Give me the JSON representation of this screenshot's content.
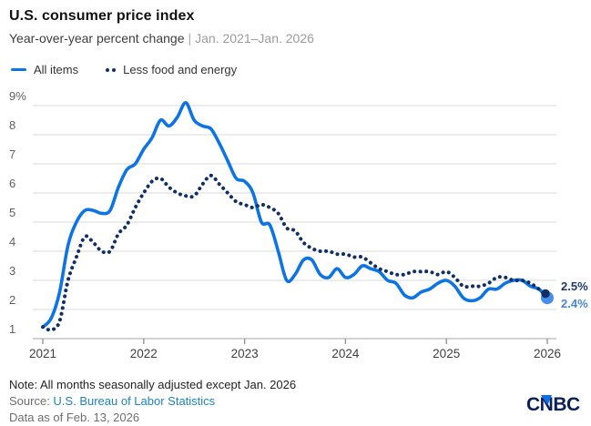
{
  "header": {
    "title": "U.S. consumer price index",
    "subtitle_main": "Year-over-year percent change",
    "subtitle_sep": "|",
    "subtitle_range": "Jan. 2021–Jan. 2026"
  },
  "legend": {
    "items": [
      {
        "label": "All items",
        "color": "#0d74e4",
        "style": "solid"
      },
      {
        "label": "Less food and energy",
        "color": "#0f2f66",
        "style": "dotted"
      }
    ]
  },
  "chart_data": {
    "type": "line",
    "title": "U.S. consumer price index",
    "subtitle": "Year-over-year percent change | Jan. 2021–Jan. 2026",
    "x_unit": "month",
    "x_start": "2021-01",
    "x_end": "2026-01",
    "ylim": [
      1,
      9
    ],
    "grid": true,
    "legend_position": "top-left",
    "y_ticks": [
      {
        "value": 9,
        "label": "9%"
      },
      {
        "value": 8,
        "label": "8"
      },
      {
        "value": 7,
        "label": "7"
      },
      {
        "value": 6,
        "label": "6"
      },
      {
        "value": 5,
        "label": "5"
      },
      {
        "value": 4,
        "label": "4"
      },
      {
        "value": 3,
        "label": "3"
      },
      {
        "value": 2,
        "label": "2"
      },
      {
        "value": 1,
        "label": "1"
      }
    ],
    "x_ticks": [
      "2021",
      "2022",
      "2023",
      "2024",
      "2025",
      "2026"
    ],
    "series": [
      {
        "name": "All items",
        "style": "solid",
        "color": "#0d74e4",
        "marker_color": "#4a8de8",
        "end_label": "2.4%",
        "end_label_color": "#4687de",
        "values": [
          1.4,
          1.7,
          2.6,
          4.2,
          5.0,
          5.4,
          5.4,
          5.3,
          5.4,
          6.2,
          6.8,
          7.0,
          7.5,
          7.9,
          8.5,
          8.3,
          8.6,
          9.1,
          8.5,
          8.3,
          8.2,
          7.7,
          7.1,
          6.5,
          6.4,
          6.0,
          5.0,
          4.9,
          4.0,
          3.0,
          3.2,
          3.7,
          3.7,
          3.2,
          3.1,
          3.4,
          3.1,
          3.2,
          3.5,
          3.4,
          3.3,
          3.0,
          2.9,
          2.5,
          2.4,
          2.6,
          2.7,
          2.9,
          3.0,
          2.8,
          2.4,
          2.3,
          2.4,
          2.7,
          2.7,
          2.9,
          3.0,
          3.0,
          2.8,
          2.7,
          2.4
        ]
      },
      {
        "name": "Less food and energy",
        "style": "dotted",
        "color": "#0f2f66",
        "marker_color": "#0f2f66",
        "end_label": "2.5%",
        "end_label_color": "#1e3a6d",
        "values": [
          1.4,
          1.3,
          1.6,
          3.0,
          3.8,
          4.5,
          4.3,
          4.0,
          4.0,
          4.6,
          4.9,
          5.5,
          6.0,
          6.4,
          6.5,
          6.2,
          6.0,
          5.9,
          5.9,
          6.3,
          6.6,
          6.3,
          6.0,
          5.7,
          5.6,
          5.5,
          5.6,
          5.5,
          5.3,
          4.8,
          4.7,
          4.3,
          4.1,
          4.0,
          4.0,
          3.9,
          3.9,
          3.8,
          3.8,
          3.6,
          3.4,
          3.3,
          3.2,
          3.2,
          3.3,
          3.3,
          3.3,
          3.2,
          3.3,
          3.1,
          2.8,
          2.8,
          2.8,
          2.9,
          3.1,
          3.1,
          3.0,
          3.0,
          2.9,
          2.7,
          2.5
        ]
      }
    ],
    "axis_colors": {
      "gridline": "#d9d9d9",
      "baseline": "#a6a6a6",
      "tick": "#8f8f8f",
      "y_label": "#5f5f5f",
      "x_label": "#3f3f3f"
    }
  },
  "footer": {
    "note": "Note: All months seasonally adjusted except Jan. 2026",
    "source_prefix": "Source: ",
    "source_link": "U.S. Bureau of Labor Statistics",
    "data_as_of": "Data as of Feb. 13, 2026",
    "logo": "CNBC"
  }
}
